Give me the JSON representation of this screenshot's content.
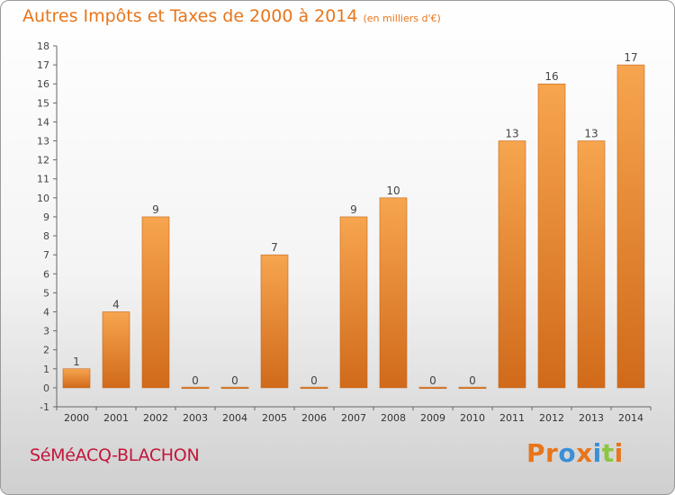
{
  "title": "Autres Impôts et Taxes de 2000 à 2014",
  "unit": "(en milliers d'€)",
  "city": "SéMéACQ-BLACHON",
  "logo": {
    "text": "Proxiti",
    "colors": [
      "#e8751a",
      "#e8751a",
      "#3a8fd6",
      "#e8751a",
      "#3a8fd6",
      "#8cc63f",
      "#e8751a"
    ]
  },
  "colors": {
    "bar_light": "#f7a54f",
    "bar_dark": "#d06a1a",
    "title": "#e8751a",
    "city": "#c2173a"
  },
  "chart_data": {
    "type": "bar",
    "categories": [
      "2000",
      "2001",
      "2002",
      "2003",
      "2004",
      "2005",
      "2006",
      "2007",
      "2008",
      "2009",
      "2010",
      "2011",
      "2012",
      "2013",
      "2014"
    ],
    "values": [
      1,
      4,
      9,
      0,
      0,
      7,
      0,
      9,
      10,
      0,
      0,
      13,
      16,
      13,
      17
    ],
    "ylim": [
      -1,
      18
    ],
    "yticks": [
      -1,
      0,
      1,
      2,
      3,
      4,
      5,
      6,
      7,
      8,
      9,
      10,
      11,
      12,
      13,
      14,
      15,
      16,
      17,
      18
    ],
    "grid": false,
    "data_labels": true
  }
}
